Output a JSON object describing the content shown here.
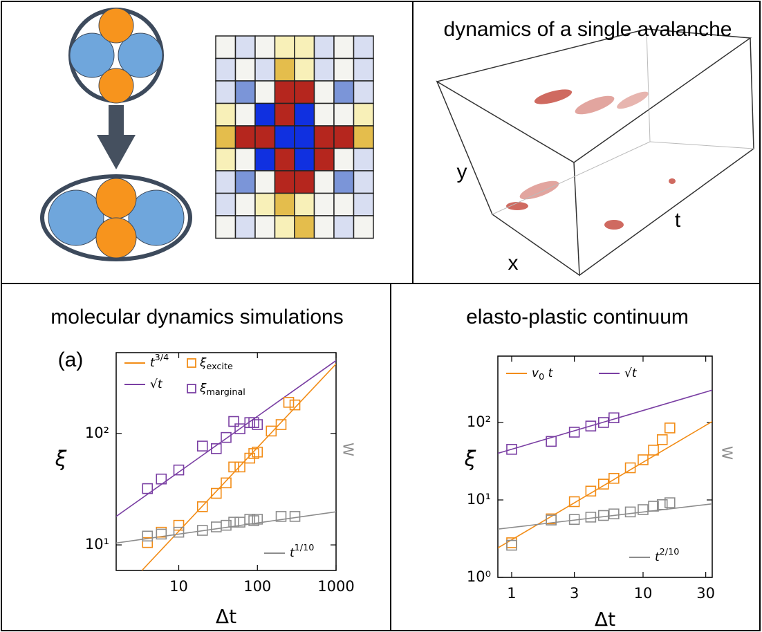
{
  "panels": {
    "avalanche_title": "dynamics of a single avalanche",
    "axis_y": "y",
    "axis_x": "x",
    "axis_t": "t"
  },
  "chart_data": [
    {
      "type": "scatter",
      "title": "molecular dynamics simulations",
      "panel_label": "(a)",
      "x_label": "Δt",
      "y_label": "ξ",
      "y2_label": "W",
      "log_x": true,
      "log_y": true,
      "xlim": [
        1.6,
        1000
      ],
      "ylim": [
        5.9,
        530
      ],
      "xticks": [
        10,
        100,
        1000
      ],
      "yticks": [
        {
          "value": 10,
          "label": "10¹"
        },
        {
          "value": 100,
          "label": "10²"
        }
      ],
      "series": [
        {
          "name": {
            "base": "ξ",
            "sub": "excite"
          },
          "color": "#f28c16",
          "x": [
            4,
            6,
            10,
            20,
            30,
            40,
            50,
            60,
            80,
            90,
            100,
            150,
            200,
            250,
            300
          ],
          "values": [
            10.5,
            13,
            15,
            22,
            29,
            36,
            50,
            50,
            60,
            66,
            68,
            105,
            120,
            190,
            180
          ]
        },
        {
          "name": {
            "base": "ξ",
            "sub": "marginal"
          },
          "color": "#7a3fa3",
          "x": [
            4,
            6,
            10,
            20,
            30,
            40,
            50,
            60,
            80,
            90,
            100
          ],
          "values": [
            32,
            39,
            47,
            77,
            73,
            92,
            128,
            110,
            125,
            125,
            120
          ]
        },
        {
          "color": "#8c8c8c",
          "x": [
            4,
            6,
            10,
            20,
            30,
            40,
            50,
            60,
            80,
            90,
            100,
            200,
            300
          ],
          "values": [
            12,
            12.5,
            13,
            13.5,
            14.5,
            15,
            16,
            16,
            17,
            16.5,
            17,
            18,
            18
          ]
        }
      ],
      "fits": [
        {
          "name": {
            "base": "t",
            "sup": "3/4"
          },
          "color": "#f28c16",
          "x": [
            3.4,
            1000
          ],
          "values": [
            5.9,
            420
          ]
        },
        {
          "name": {
            "base": "√t"
          },
          "color": "#7a3fa3",
          "x": [
            1.6,
            1000
          ],
          "values": [
            18,
            450
          ]
        },
        {
          "name": {
            "base": "t",
            "sup": "1/10"
          },
          "color": "#8c8c8c",
          "x": [
            1.6,
            1000
          ],
          "values": [
            10.4,
            19.8
          ]
        }
      ]
    },
    {
      "type": "scatter",
      "title": "elasto-plastic continuum",
      "x_label": "Δt",
      "y_label": "ξ",
      "y2_label": "W",
      "log_x": true,
      "log_y": true,
      "xlim": [
        0.785,
        33.6
      ],
      "ylim": [
        1,
        720
      ],
      "xticks": [
        1,
        3,
        10,
        30
      ],
      "yticks": [
        {
          "value": 1,
          "label": "10⁰"
        },
        {
          "value": 10,
          "label": "10¹"
        },
        {
          "value": 100,
          "label": "10²"
        }
      ],
      "series": [
        {
          "color": "#f28c16",
          "x": [
            1,
            2,
            3,
            4,
            5,
            6,
            8,
            10,
            12,
            14,
            16
          ],
          "values": [
            2.8,
            5.7,
            9.5,
            13,
            16,
            19,
            26,
            33,
            44,
            60,
            85
          ]
        },
        {
          "color": "#7a3fa3",
          "x": [
            1,
            2,
            3,
            4,
            5,
            6
          ],
          "values": [
            45,
            57,
            75,
            90,
            100,
            115
          ]
        },
        {
          "color": "#8c8c8c",
          "x": [
            1,
            2,
            3,
            4,
            5,
            6,
            8,
            10,
            12,
            14,
            16
          ],
          "values": [
            2.6,
            5.5,
            5.6,
            6,
            6.3,
            6.6,
            7,
            7.5,
            8.3,
            8.7,
            9.2
          ]
        }
      ],
      "fits": [
        {
          "name": {
            "base": "v",
            "sub": "0",
            "tail": " t"
          },
          "color": "#f28c16",
          "x": [
            0.785,
            33.6
          ],
          "values": [
            2.4,
            103
          ]
        },
        {
          "name": {
            "base": "√t"
          },
          "color": "#7a3fa3",
          "x": [
            0.785,
            33.6
          ],
          "values": [
            40,
            262
          ]
        },
        {
          "name": {
            "base": "t",
            "sup": "2/10"
          },
          "color": "#8c8c8c",
          "x": [
            0.785,
            33.6
          ],
          "values": [
            4.2,
            8.9
          ]
        }
      ]
    }
  ]
}
